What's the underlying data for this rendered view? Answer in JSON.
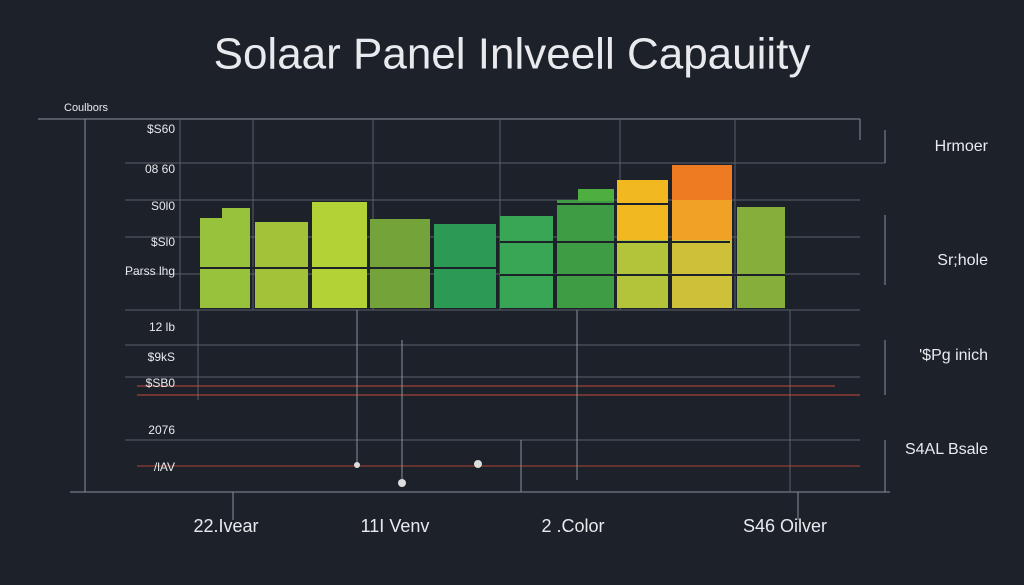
{
  "header": {
    "title": "Solaar Panel Inlveell Capauiity",
    "corner_label": "Coulbors"
  },
  "y_labels": [
    "$S60",
    "08 60",
    "S0l0",
    "$Sl0",
    "Parss lhg",
    "12 lb",
    "$9kS",
    "$SB0",
    "2076",
    "/lAV"
  ],
  "right_labels": [
    "Hrmoer",
    "Sr;hole",
    "'$Pg inich",
    "S4AL Bsale"
  ],
  "x_labels": [
    "22.Ivear",
    "11I Venv",
    "2 .Color",
    "S46 Oilver"
  ]
}
